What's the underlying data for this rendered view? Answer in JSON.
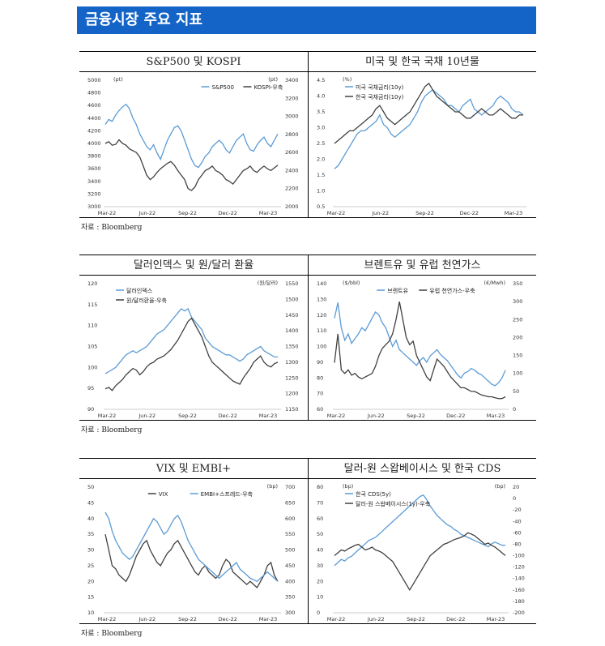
{
  "page": {
    "header": "금융시장 주요 지표",
    "source_label": "자료 : Bloomberg",
    "colors": {
      "header_bg": "#1464c8",
      "blue": "#5b9bd5",
      "dark": "#404040"
    }
  },
  "chart_data": [
    {
      "id": "sp500-kospi",
      "type": "line",
      "title": "S&P500 및 KOSPI",
      "left_unit": "(pt)",
      "right_unit": "(pt)",
      "x_ticks": [
        "Mar-22",
        "Jun-22",
        "Sep-22",
        "Dec-22",
        "Mar-23"
      ],
      "left_ticks": [
        "5000",
        "4800",
        "4600",
        "4400",
        "4200",
        "4000",
        "3800",
        "3600",
        "3400",
        "3200",
        "3000"
      ],
      "right_ticks": [
        "3400",
        "3200",
        "3000",
        "2800",
        "2600",
        "2400",
        "2200",
        "2000"
      ],
      "ylim_left": [
        3000,
        5000
      ],
      "ylim_right": [
        2000,
        3400
      ],
      "legend_position": "top-right",
      "series": [
        {
          "name": "S&P500",
          "axis": "left",
          "color": "#5b9bd5",
          "values": [
            4300,
            4380,
            4350,
            4450,
            4520,
            4580,
            4620,
            4550,
            4400,
            4300,
            4150,
            4050,
            3950,
            3900,
            3980,
            3850,
            3750,
            3900,
            4050,
            4150,
            4250,
            4280,
            4200,
            4050,
            3900,
            3750,
            3650,
            3620,
            3700,
            3800,
            3850,
            3950,
            4000,
            4050,
            4000,
            3900,
            3850,
            3950,
            4050,
            4100,
            4150,
            4000,
            3900,
            3880,
            3980,
            4050,
            4100,
            4000,
            3950,
            4050,
            4150
          ]
        },
        {
          "name": "KOSPI-우축",
          "axis": "right",
          "color": "#404040",
          "values": [
            2700,
            2720,
            2680,
            2690,
            2740,
            2700,
            2680,
            2640,
            2620,
            2600,
            2550,
            2450,
            2350,
            2300,
            2330,
            2380,
            2420,
            2450,
            2480,
            2500,
            2460,
            2400,
            2350,
            2300,
            2200,
            2180,
            2220,
            2300,
            2350,
            2400,
            2420,
            2450,
            2400,
            2380,
            2350,
            2300,
            2280,
            2250,
            2300,
            2350,
            2400,
            2420,
            2450,
            2400,
            2380,
            2420,
            2450,
            2420,
            2400,
            2430,
            2460
          ]
        }
      ]
    },
    {
      "id": "us-kr-10y",
      "type": "line",
      "title": "미국 및 한국 국채 10년물",
      "left_unit": "(%)",
      "x_ticks": [
        "Mar-22",
        "Jun-22",
        "Sep-22",
        "Dec-22",
        "Mar-23"
      ],
      "left_ticks": [
        "4.5",
        "4.0",
        "3.5",
        "3.0",
        "2.5",
        "2.0",
        "1.5",
        "1.0",
        "0.5"
      ],
      "ylim_left": [
        0.5,
        4.5
      ],
      "legend_position": "top-left",
      "series": [
        {
          "name": "미국 국채금리(10y)",
          "axis": "left",
          "color": "#5b9bd5",
          "values": [
            1.7,
            1.8,
            2.0,
            2.2,
            2.4,
            2.6,
            2.8,
            2.9,
            2.9,
            3.0,
            3.1,
            3.2,
            3.4,
            3.1,
            3.0,
            2.8,
            2.7,
            2.8,
            2.9,
            3.0,
            3.1,
            3.3,
            3.5,
            3.8,
            4.0,
            4.1,
            4.2,
            4.1,
            4.0,
            3.9,
            3.7,
            3.7,
            3.6,
            3.5,
            3.7,
            3.8,
            3.9,
            3.6,
            3.5,
            3.4,
            3.5,
            3.6,
            3.7,
            3.9,
            4.0,
            3.9,
            3.8,
            3.6,
            3.5,
            3.5,
            3.4
          ]
        },
        {
          "name": "한국 국채금리(10y)",
          "axis": "left",
          "color": "#404040",
          "values": [
            2.5,
            2.6,
            2.7,
            2.8,
            2.9,
            2.9,
            3.0,
            3.1,
            3.2,
            3.3,
            3.4,
            3.6,
            3.7,
            3.5,
            3.3,
            3.2,
            3.1,
            3.2,
            3.3,
            3.4,
            3.5,
            3.7,
            3.9,
            4.1,
            4.3,
            4.4,
            4.2,
            4.0,
            3.9,
            3.8,
            3.7,
            3.6,
            3.5,
            3.5,
            3.4,
            3.3,
            3.3,
            3.4,
            3.5,
            3.6,
            3.5,
            3.4,
            3.4,
            3.5,
            3.6,
            3.5,
            3.4,
            3.3,
            3.3,
            3.4,
            3.4
          ]
        }
      ]
    },
    {
      "id": "dxy-usdkrw",
      "type": "line",
      "title": "달러인덱스 및 원/달러 환율",
      "right_unit": "(원/달러)",
      "x_ticks": [
        "Mar-22",
        "Jun-22",
        "Sep-22",
        "Dec-22",
        "Mar-23"
      ],
      "left_ticks": [
        "120",
        "115",
        "110",
        "105",
        "100",
        "95",
        "90"
      ],
      "right_ticks": [
        "1550",
        "1500",
        "1450",
        "1400",
        "1350",
        "1300",
        "1250",
        "1200",
        "1150"
      ],
      "ylim_left": [
        90,
        120
      ],
      "ylim_right": [
        1150,
        1550
      ],
      "legend_position": "top-left",
      "series": [
        {
          "name": "달러인덱스",
          "axis": "left",
          "color": "#5b9bd5",
          "values": [
            98.5,
            99,
            99.5,
            100,
            101,
            102,
            103,
            103.5,
            104,
            103.5,
            104,
            104.5,
            105,
            106,
            107,
            108,
            108.5,
            109,
            110,
            111,
            112,
            113,
            114,
            113.5,
            114,
            112,
            111,
            110,
            109,
            107,
            106,
            105,
            104.5,
            104,
            103.5,
            103,
            103,
            102.5,
            102,
            101.5,
            102,
            103,
            103.5,
            104,
            104.5,
            105,
            104,
            103.5,
            103,
            102.5,
            102.5
          ]
        },
        {
          "name": "원/달러환율-우축",
          "axis": "right",
          "color": "#404040",
          "values": [
            1215,
            1220,
            1210,
            1225,
            1235,
            1245,
            1260,
            1270,
            1280,
            1275,
            1260,
            1270,
            1285,
            1295,
            1300,
            1310,
            1315,
            1320,
            1330,
            1340,
            1355,
            1370,
            1390,
            1410,
            1430,
            1440,
            1420,
            1400,
            1380,
            1350,
            1320,
            1300,
            1290,
            1280,
            1270,
            1260,
            1250,
            1240,
            1235,
            1230,
            1250,
            1265,
            1280,
            1300,
            1310,
            1320,
            1300,
            1290,
            1285,
            1295,
            1300
          ]
        }
      ]
    },
    {
      "id": "brent-ttf",
      "type": "line",
      "title": "브렌트유 및 유럽 천연가스",
      "left_unit": "($/bbl)",
      "right_unit": "(€/Mwh)",
      "x_ticks": [
        "Mar-22",
        "Jun-22",
        "Sep-22",
        "Dec-22",
        "Mar-23"
      ],
      "left_ticks": [
        "140",
        "130",
        "120",
        "110",
        "100",
        "90",
        "80",
        "70",
        "60"
      ],
      "right_ticks": [
        "350",
        "300",
        "250",
        "200",
        "150",
        "100",
        "50",
        "0"
      ],
      "ylim_left": [
        60,
        140
      ],
      "ylim_right": [
        0,
        350
      ],
      "legend_position": "top-center",
      "series": [
        {
          "name": "브렌트유",
          "axis": "left",
          "color": "#5b9bd5",
          "values": [
            118,
            128,
            112,
            104,
            108,
            102,
            105,
            108,
            112,
            110,
            114,
            118,
            122,
            120,
            115,
            112,
            106,
            100,
            104,
            98,
            96,
            94,
            92,
            90,
            88,
            91,
            93,
            90,
            94,
            96,
            98,
            95,
            93,
            91,
            88,
            85,
            82,
            80,
            83,
            84,
            86,
            85,
            83,
            82,
            80,
            78,
            76,
            75,
            77,
            80,
            85
          ]
        },
        {
          "name": "유럽 천연가스-우축",
          "axis": "right",
          "color": "#404040",
          "values": [
            130,
            210,
            110,
            100,
            110,
            95,
            100,
            90,
            85,
            90,
            95,
            100,
            120,
            150,
            170,
            180,
            190,
            210,
            250,
            300,
            250,
            200,
            180,
            190,
            150,
            130,
            110,
            90,
            80,
            110,
            140,
            130,
            120,
            105,
            90,
            80,
            70,
            60,
            60,
            55,
            50,
            50,
            45,
            40,
            38,
            35,
            35,
            32,
            30,
            30,
            35
          ]
        }
      ]
    },
    {
      "id": "vix-embi",
      "type": "line",
      "title": "VIX 및 EMBI+",
      "right_unit": "(bp)",
      "x_ticks": [
        "Mar-22",
        "Jun-22",
        "Sep-22",
        "Dec-22",
        "Mar-23"
      ],
      "left_ticks": [
        "50",
        "45",
        "40",
        "35",
        "30",
        "25",
        "20",
        "15",
        "10"
      ],
      "right_ticks": [
        "700",
        "650",
        "600",
        "550",
        "500",
        "450",
        "400",
        "350",
        "300"
      ],
      "ylim_left": [
        10,
        50
      ],
      "ylim_right": [
        300,
        700
      ],
      "legend_position": "top-center",
      "series": [
        {
          "name": "VIX",
          "axis": "left",
          "color": "#404040",
          "values": [
            35,
            30,
            25,
            24,
            22,
            21,
            20,
            22,
            25,
            28,
            30,
            32,
            33,
            30,
            28,
            26,
            25,
            27,
            29,
            30,
            32,
            33,
            31,
            29,
            27,
            25,
            23,
            22,
            24,
            25,
            23,
            22,
            21,
            22,
            25,
            27,
            26,
            23,
            22,
            21,
            20,
            19,
            20,
            19,
            18,
            20,
            22,
            25,
            26,
            22,
            20
          ]
        },
        {
          "name": "EMBI+스프레드-우축",
          "axis": "right",
          "color": "#5b9bd5",
          "values": [
            620,
            600,
            560,
            530,
            510,
            490,
            480,
            470,
            480,
            500,
            520,
            540,
            560,
            580,
            600,
            590,
            570,
            550,
            560,
            580,
            600,
            610,
            590,
            560,
            530,
            510,
            490,
            470,
            460,
            450,
            440,
            430,
            420,
            410,
            420,
            430,
            440,
            450,
            460,
            440,
            430,
            420,
            410,
            405,
            400,
            410,
            420,
            430,
            420,
            410,
            400
          ]
        }
      ]
    },
    {
      "id": "kr-cds-swap",
      "type": "line",
      "title": "달러-원 스왑베이시스 및 한국 CDS",
      "left_unit": "(bp)",
      "right_unit": "(bp)",
      "x_ticks": [
        "Mar-22",
        "Jun-22",
        "Sep-22",
        "Dec-22",
        "Mar-23"
      ],
      "left_ticks": [
        "80",
        "70",
        "60",
        "50",
        "40",
        "30",
        "20",
        "10",
        "0"
      ],
      "right_ticks": [
        "20",
        "0",
        "-20",
        "-40",
        "-60",
        "-80",
        "-100",
        "-120",
        "-140",
        "-160",
        "-180",
        "-200"
      ],
      "ylim_left": [
        0,
        80
      ],
      "ylim_right": [
        -200,
        20
      ],
      "legend_position": "top-left",
      "series": [
        {
          "name": "한국 CDS(5y)",
          "axis": "left",
          "color": "#5b9bd5",
          "values": [
            30,
            32,
            34,
            33,
            35,
            36,
            38,
            40,
            42,
            44,
            46,
            47,
            48,
            50,
            52,
            54,
            56,
            58,
            60,
            62,
            64,
            66,
            68,
            70,
            72,
            74,
            75,
            72,
            68,
            65,
            62,
            60,
            58,
            56,
            55,
            53,
            52,
            50,
            49,
            48,
            47,
            46,
            45,
            44,
            43,
            42,
            44,
            45,
            44,
            43,
            43
          ]
        },
        {
          "name": "달러-원 스왑베이시스(1y)-우축",
          "axis": "right",
          "color": "#404040",
          "values": [
            -100,
            -95,
            -90,
            -92,
            -88,
            -85,
            -82,
            -80,
            -85,
            -90,
            -88,
            -85,
            -90,
            -92,
            -95,
            -100,
            -105,
            -110,
            -120,
            -130,
            -140,
            -150,
            -160,
            -150,
            -140,
            -130,
            -120,
            -110,
            -100,
            -95,
            -90,
            -85,
            -80,
            -78,
            -75,
            -72,
            -70,
            -68,
            -65,
            -60,
            -62,
            -65,
            -70,
            -75,
            -80,
            -78,
            -82,
            -85,
            -90,
            -95,
            -100
          ]
        }
      ]
    }
  ]
}
